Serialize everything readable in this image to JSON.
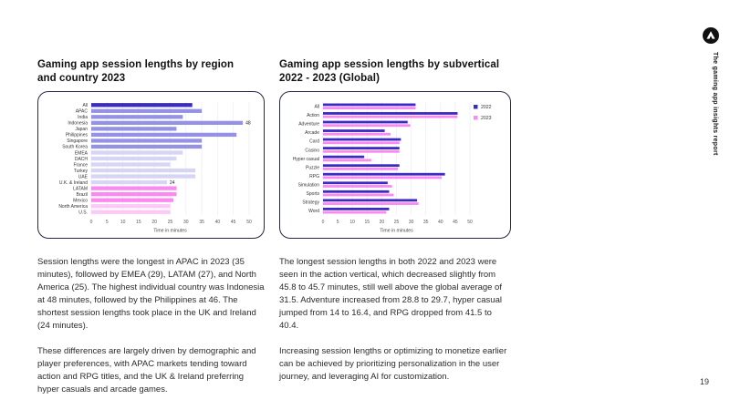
{
  "page": {
    "number": "19"
  },
  "sidebar": {
    "report_title": "The gaming app insights report"
  },
  "left_section": {
    "title_line1": "Gaming app session lengths by region",
    "title_line2": "and country 2023",
    "paragraph1": "Session lengths were the longest in APAC in 2023 (35 minutes), followed by EMEA (29), LATAM (27), and North America (25). The highest individual country was Indonesia at 48 minutes, followed by the Philippines at 46. The shortest session lengths took place in the UK and Ireland (24 minutes).",
    "paragraph2": "These differences are largely driven by demographic and player preferences, with APAC markets tending toward action and RPG titles, and the UK & Ireland preferring hyper casuals and arcade games."
  },
  "right_section": {
    "title_line1": "Gaming app session lengths by subvertical",
    "title_line2": "2022 - 2023 (Global)",
    "paragraph1": "The longest session lengths in both 2022 and 2023 were seen in the action vertical, which decreased slightly from 45.8 to 45.7 minutes, still well above the global average of 31.5. Adventure increased from 28.8 to 29.7, hyper casual jumped from 14 to 16.4, and RPG dropped from 41.5 to 40.4.",
    "paragraph2": "Increasing session lengths or optimizing to monetize earlier can be achieved by prioritizing personalization in the user journey, and leveraging AI for customization."
  },
  "colors": {
    "dark_indigo": "#3a2bc2",
    "periwinkle": "#9592e5",
    "light_lavender": "#d7d5f4",
    "pink": "#fa8af1",
    "light_pink": "#fcc8f7",
    "card_border": "#272747",
    "gridline": "#ececf4"
  },
  "chart_data": [
    {
      "type": "bar",
      "orientation": "horizontal",
      "title": "Gaming app session lengths by region and country 2023",
      "categories": [
        "All",
        "APAC",
        "India",
        "Indonesia",
        "Japan",
        "Philippines",
        "Singapore",
        "South Korea",
        "EMEA",
        "DACH",
        "France",
        "Turkey",
        "UAE",
        "U.K. & Ireland",
        "LATAM",
        "Brazil",
        "Mexico",
        "North America",
        "U.S."
      ],
      "values": [
        32,
        35,
        29,
        48,
        27,
        46,
        35,
        35,
        29,
        27,
        25,
        33,
        33,
        24,
        27,
        27,
        26,
        25,
        25
      ],
      "bar_colors": [
        "#3a2bc2",
        "#9592e5",
        "#9592e5",
        "#9592e5",
        "#9592e5",
        "#9592e5",
        "#9592e5",
        "#9592e5",
        "#d7d5f4",
        "#d7d5f4",
        "#d7d5f4",
        "#d7d5f4",
        "#d7d5f4",
        "#d7d5f4",
        "#fa8af1",
        "#fa8af1",
        "#fa8af1",
        "#fcc8f7",
        "#fcc8f7"
      ],
      "value_labels": [
        {
          "category": "Indonesia",
          "text": "48"
        },
        {
          "category": "U.K. & Ireland",
          "text": "24"
        }
      ],
      "xlabel": "Time in minutes",
      "xlim": [
        0,
        50
      ],
      "xticks": [
        0,
        5,
        10,
        15,
        20,
        25,
        30,
        35,
        40,
        45,
        50
      ],
      "grid": true,
      "legend_position": "none"
    },
    {
      "type": "bar",
      "orientation": "horizontal",
      "title": "Gaming app session lengths by subvertical 2022 - 2023 (Global)",
      "categories": [
        "All",
        "Action",
        "Adventure",
        "Arcade",
        "Card",
        "Casino",
        "Hyper casual",
        "Puzzle",
        "RPG",
        "Simulation",
        "Sports",
        "Strategy",
        "Word"
      ],
      "series": [
        {
          "name": "2022",
          "color": "#3a2bc2",
          "values": [
            31.5,
            45.8,
            28.8,
            21,
            26.5,
            26,
            14,
            26,
            41.5,
            22,
            22.5,
            32,
            22.5
          ]
        },
        {
          "name": "2023",
          "color": "#fa8af1",
          "values": [
            31.5,
            45.7,
            29.7,
            23,
            26,
            26,
            16.4,
            25.5,
            40.4,
            23.5,
            24,
            32.5,
            21.5
          ]
        }
      ],
      "xlabel": "Time in minutes",
      "xlim": [
        0,
        50
      ],
      "xticks": [
        0,
        5,
        10,
        15,
        20,
        25,
        30,
        35,
        40,
        45,
        50
      ],
      "grid": true,
      "legend_position": "top-right"
    }
  ]
}
